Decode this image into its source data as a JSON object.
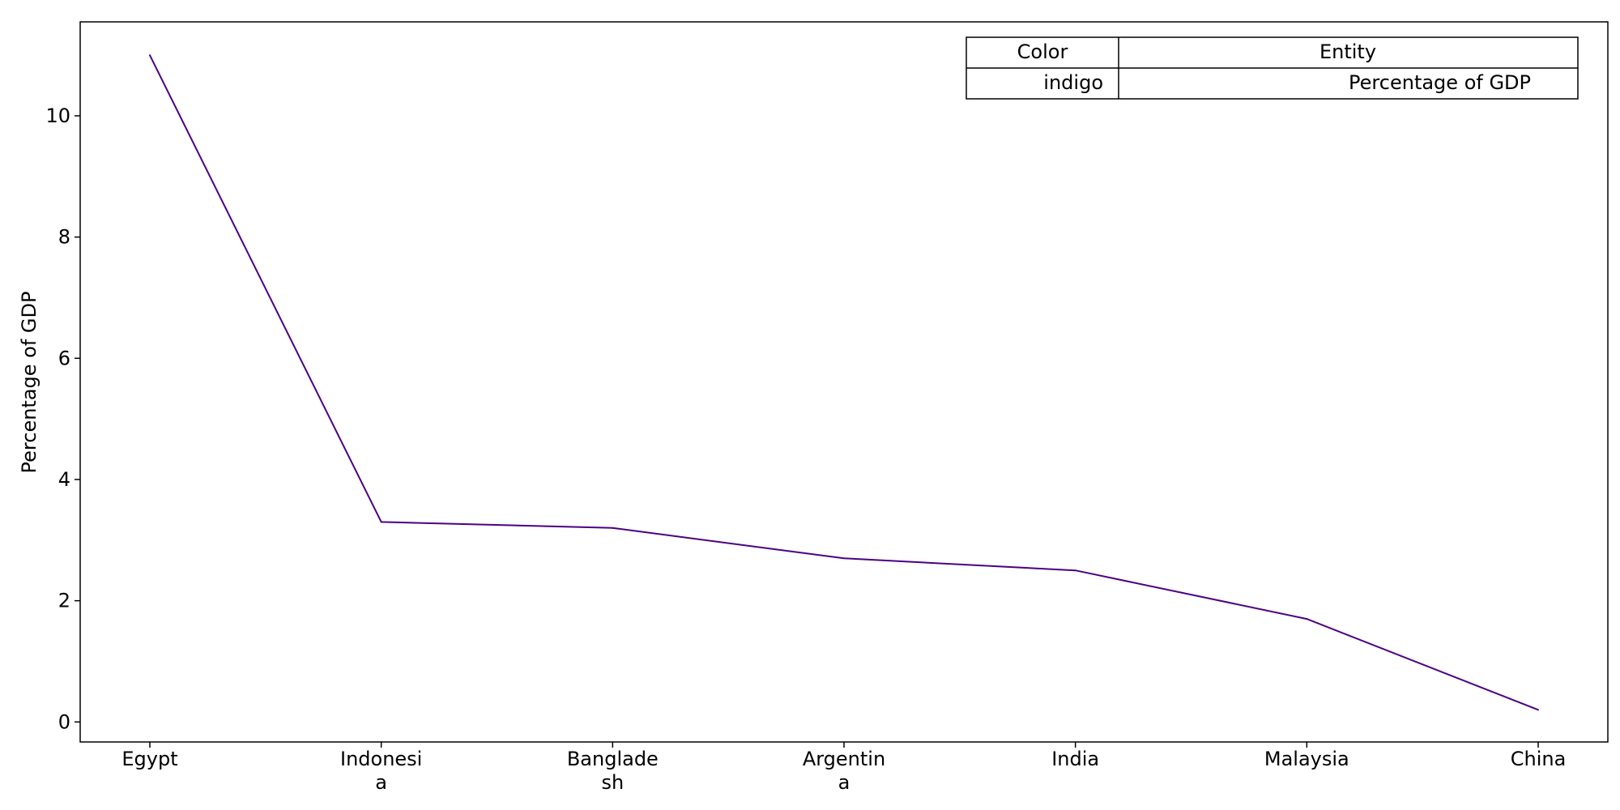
{
  "chart_data": {
    "type": "line",
    "categories": [
      "Egypt",
      "Indonesia",
      "Bangladesh",
      "Argentina",
      "India",
      "Malaysia",
      "China"
    ],
    "category_label_lines": [
      [
        "Egypt"
      ],
      [
        "Indonesi",
        "a"
      ],
      [
        "Banglade",
        "sh"
      ],
      [
        "Argentin",
        "a"
      ],
      [
        "India"
      ],
      [
        "Malaysia"
      ],
      [
        "China"
      ]
    ],
    "series": [
      {
        "values": [
          11.0,
          3.3,
          3.2,
          2.7,
          2.5,
          1.7,
          0.2
        ],
        "color": "#4b0082"
      }
    ],
    "title": "",
    "xlabel": "",
    "ylabel": "Percentage of GDP",
    "ylim": [
      -0.33,
      11.55
    ],
    "yticks": [
      0,
      2,
      4,
      6,
      8,
      10
    ],
    "grid": false,
    "legend": {
      "placement": "top-right",
      "header": {
        "color": "Color",
        "entity": "Entity"
      },
      "row": {
        "color": "indigo",
        "entity": "Percentage of GDP"
      }
    }
  }
}
